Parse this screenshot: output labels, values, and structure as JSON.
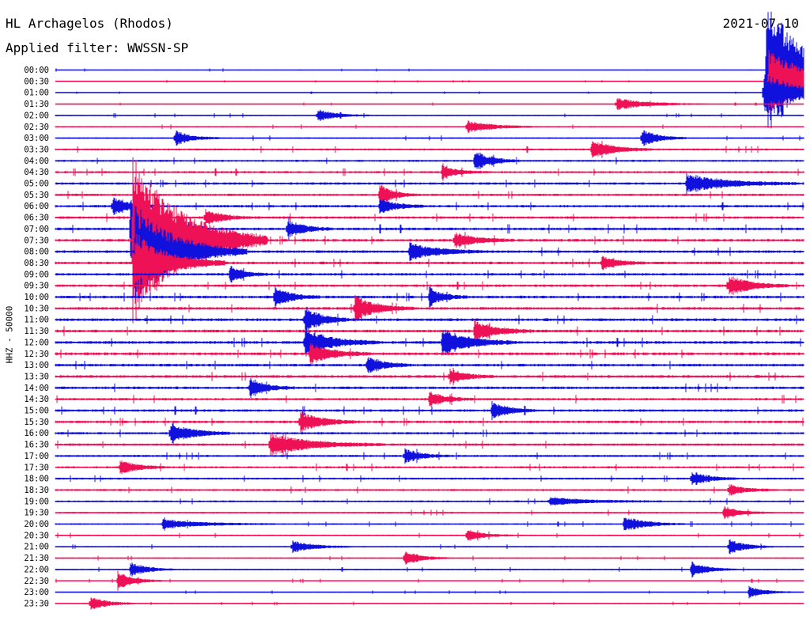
{
  "header": {
    "station": "HL Archagelos (Rhodos)",
    "date": "2021-07-10",
    "filter": "Applied filter: WWSSN-SP"
  },
  "chart_data": {
    "type": "line",
    "title": "HL Archagelos (Rhodos)",
    "subtitle": "Applied filter: WWSSN-SP",
    "date": "2021-07-10",
    "ylabel": "HHZ - 50000",
    "xlabel": "",
    "row_labels": [
      "00:00",
      "00:30",
      "01:00",
      "01:30",
      "02:00",
      "02:30",
      "03:00",
      "03:30",
      "04:00",
      "04:30",
      "05:00",
      "05:30",
      "06:00",
      "06:30",
      "07:00",
      "07:30",
      "08:00",
      "08:30",
      "09:00",
      "09:30",
      "10:00",
      "10:30",
      "11:00",
      "11:30",
      "12:00",
      "12:30",
      "13:00",
      "13:30",
      "14:00",
      "14:30",
      "15:00",
      "15:30",
      "16:00",
      "16:30",
      "17:00",
      "17:30",
      "18:00",
      "18:30",
      "19:00",
      "19:30",
      "20:00",
      "20:30",
      "21:00",
      "21:30",
      "22:00",
      "22:30",
      "23:00",
      "23:30"
    ],
    "row_colors": [
      "#1111dd",
      "#ee1155"
    ],
    "trace_minutes": 30,
    "background_noise": [
      0.6,
      0.5,
      0.5,
      0.6,
      0.8,
      0.9,
      1.0,
      1.3,
      1.3,
      1.4,
      1.5,
      1.5,
      1.6,
      1.6,
      1.7,
      1.7,
      1.7,
      1.7,
      1.6,
      1.6,
      1.7,
      1.7,
      1.8,
      1.8,
      1.8,
      1.8,
      1.7,
      1.7,
      1.7,
      1.6,
      1.6,
      1.6,
      1.5,
      1.5,
      1.4,
      1.4,
      1.3,
      1.3,
      1.2,
      1.1,
      1.0,
      1.0,
      0.9,
      0.9,
      0.9,
      0.8,
      0.7,
      0.7
    ],
    "events": [
      {
        "row": 0,
        "minute": 28.5,
        "amp": 100,
        "dur": 1.2
      },
      {
        "row": 1,
        "minute": 28.6,
        "amp": 40,
        "dur": 2.5
      },
      {
        "row": 2,
        "minute": 28.4,
        "amp": 25,
        "dur": 1.5
      },
      {
        "row": 14,
        "minute": 3.0,
        "amp": 40,
        "dur": 1.0
      },
      {
        "row": 15,
        "minute": 3.1,
        "amp": 110,
        "dur": 1.8
      },
      {
        "row": 16,
        "minute": 3.2,
        "amp": 60,
        "dur": 1.5
      },
      {
        "row": 17,
        "minute": 3.2,
        "amp": 40,
        "dur": 1.2
      },
      {
        "row": 3,
        "minute": 22.5,
        "amp": 8,
        "dur": 1.2
      },
      {
        "row": 4,
        "minute": 10.5,
        "amp": 8,
        "dur": 0.7
      },
      {
        "row": 5,
        "minute": 16.5,
        "amp": 8,
        "dur": 1.0
      },
      {
        "row": 6,
        "minute": 4.8,
        "amp": 10,
        "dur": 0.6
      },
      {
        "row": 6,
        "minute": 23.5,
        "amp": 12,
        "dur": 0.6
      },
      {
        "row": 7,
        "minute": 21.5,
        "amp": 12,
        "dur": 0.8
      },
      {
        "row": 8,
        "minute": 16.8,
        "amp": 14,
        "dur": 0.6
      },
      {
        "row": 9,
        "minute": 15.5,
        "amp": 8,
        "dur": 0.6
      },
      {
        "row": 10,
        "minute": 25.3,
        "amp": 12,
        "dur": 1.5
      },
      {
        "row": 11,
        "minute": 13.0,
        "amp": 14,
        "dur": 0.5
      },
      {
        "row": 12,
        "minute": 2.3,
        "amp": 12,
        "dur": 0.6
      },
      {
        "row": 12,
        "minute": 13.0,
        "amp": 10,
        "dur": 0.6
      },
      {
        "row": 13,
        "minute": 6.0,
        "amp": 12,
        "dur": 0.6
      },
      {
        "row": 14,
        "minute": 9.3,
        "amp": 12,
        "dur": 0.6
      },
      {
        "row": 15,
        "minute": 16.0,
        "amp": 10,
        "dur": 0.8
      },
      {
        "row": 16,
        "minute": 14.2,
        "amp": 12,
        "dur": 1.0
      },
      {
        "row": 17,
        "minute": 21.9,
        "amp": 10,
        "dur": 0.6
      },
      {
        "row": 18,
        "minute": 7.0,
        "amp": 12,
        "dur": 0.5
      },
      {
        "row": 19,
        "minute": 27.0,
        "amp": 14,
        "dur": 0.8
      },
      {
        "row": 20,
        "minute": 8.8,
        "amp": 14,
        "dur": 0.6
      },
      {
        "row": 20,
        "minute": 15.0,
        "amp": 12,
        "dur": 0.5
      },
      {
        "row": 21,
        "minute": 12.0,
        "amp": 16,
        "dur": 0.8
      },
      {
        "row": 22,
        "minute": 10.0,
        "amp": 18,
        "dur": 0.6
      },
      {
        "row": 23,
        "minute": 16.8,
        "amp": 14,
        "dur": 0.8
      },
      {
        "row": 24,
        "minute": 10.0,
        "amp": 18,
        "dur": 1.0
      },
      {
        "row": 24,
        "minute": 15.5,
        "amp": 18,
        "dur": 1.0
      },
      {
        "row": 25,
        "minute": 10.2,
        "amp": 14,
        "dur": 0.8
      },
      {
        "row": 26,
        "minute": 12.5,
        "amp": 12,
        "dur": 0.6
      },
      {
        "row": 27,
        "minute": 15.8,
        "amp": 10,
        "dur": 0.6
      },
      {
        "row": 28,
        "minute": 7.8,
        "amp": 12,
        "dur": 0.6
      },
      {
        "row": 29,
        "minute": 15.0,
        "amp": 10,
        "dur": 0.6
      },
      {
        "row": 30,
        "minute": 17.5,
        "amp": 12,
        "dur": 0.6
      },
      {
        "row": 31,
        "minute": 9.8,
        "amp": 14,
        "dur": 0.8
      },
      {
        "row": 32,
        "minute": 4.6,
        "amp": 14,
        "dur": 0.8
      },
      {
        "row": 33,
        "minute": 8.6,
        "amp": 14,
        "dur": 1.5
      },
      {
        "row": 34,
        "minute": 14.0,
        "amp": 10,
        "dur": 0.6
      },
      {
        "row": 35,
        "minute": 2.6,
        "amp": 10,
        "dur": 0.6
      },
      {
        "row": 36,
        "minute": 25.5,
        "amp": 10,
        "dur": 0.6
      },
      {
        "row": 37,
        "minute": 27.0,
        "amp": 8,
        "dur": 0.6
      },
      {
        "row": 38,
        "minute": 19.8,
        "amp": 5,
        "dur": 1.5
      },
      {
        "row": 39,
        "minute": 26.8,
        "amp": 8,
        "dur": 0.6
      },
      {
        "row": 40,
        "minute": 4.3,
        "amp": 6,
        "dur": 1.5
      },
      {
        "row": 40,
        "minute": 22.8,
        "amp": 10,
        "dur": 0.8
      },
      {
        "row": 41,
        "minute": 16.5,
        "amp": 8,
        "dur": 0.6
      },
      {
        "row": 42,
        "minute": 9.5,
        "amp": 8,
        "dur": 0.8
      },
      {
        "row": 42,
        "minute": 27.0,
        "amp": 10,
        "dur": 0.6
      },
      {
        "row": 43,
        "minute": 14.0,
        "amp": 10,
        "dur": 0.6
      },
      {
        "row": 44,
        "minute": 3.0,
        "amp": 10,
        "dur": 0.6
      },
      {
        "row": 44,
        "minute": 25.5,
        "amp": 10,
        "dur": 0.6
      },
      {
        "row": 45,
        "minute": 2.5,
        "amp": 12,
        "dur": 0.6
      },
      {
        "row": 46,
        "minute": 27.8,
        "amp": 8,
        "dur": 0.6
      },
      {
        "row": 47,
        "minute": 1.4,
        "amp": 10,
        "dur": 0.6
      }
    ]
  }
}
